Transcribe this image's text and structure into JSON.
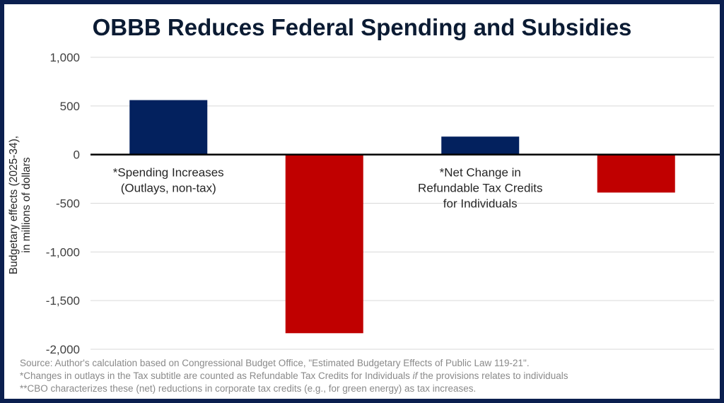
{
  "chart_data": {
    "type": "bar",
    "title": "OBBB Reduces Federal Spending and Subsidies",
    "ylabel": "Budgetary effects (2025-34), in millions of dollars",
    "xlabel": "",
    "ylim": [
      -2000,
      1000
    ],
    "yticks": [
      1000,
      500,
      0,
      -500,
      -1000,
      -1500,
      -2000
    ],
    "ytick_labels": [
      "1,000",
      "500",
      "0",
      "-500",
      "-1,000",
      "-1,500",
      "-2,000"
    ],
    "grid": true,
    "bars": [
      {
        "label_lines": [
          "*Spending Increases",
          "(Outlays, non-tax)"
        ],
        "value": 560,
        "color": "#03215e"
      },
      {
        "label_lines": [],
        "value": -1835,
        "color": "#c00000"
      },
      {
        "label_lines": [
          "*Net Change in",
          "Refundable Tax Credits",
          "for Individuals"
        ],
        "value": 185,
        "color": "#03215e"
      },
      {
        "label_lines": [],
        "value": -390,
        "color": "#c00000"
      }
    ]
  },
  "notes": {
    "source": "Source: Author's calculation based on Congressional Budget Office, \"Estimated Budgetary Effects of Public Law 119-21\".",
    "note1_pre": "*Changes in outlays in the Tax subtitle are counted as Refundable Tax Credits for Individuals ",
    "note1_em": "if",
    "note1_post": " the provisions relates to individuals",
    "note2": "**CBO characterizes these (net) reductions in corporate tax credits (e.g., for green energy) as tax increases."
  }
}
